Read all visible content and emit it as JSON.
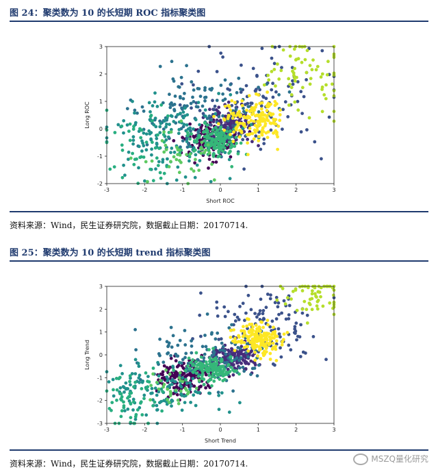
{
  "figure24": {
    "title": "图 24：聚类数为 10 的长短期 ROC 指标聚类图",
    "source": "资料来源：Wind，民生证券研究院，数据截止日期：20170714."
  },
  "figure25": {
    "title": "图 25：聚类数为 10 的长短期 trend 指标聚类图",
    "source": "资料来源：Wind，民生证券研究院，数据截止日期：20170714."
  },
  "watermark": "MSZQ量化研究",
  "colors": {
    "rule": "#1f3a6e",
    "clusters": [
      "#472d7b",
      "#3b528b",
      "#2c728e",
      "#21918c",
      "#28ae80",
      "#5ec962",
      "#35b779",
      "#fde725",
      "#dde318",
      "#440154"
    ]
  },
  "chart_data": [
    {
      "type": "scatter",
      "title": "",
      "xlabel": "Short ROC",
      "ylabel": "Long ROC",
      "xlim": [
        -3,
        3
      ],
      "ylim": [
        -2,
        3
      ],
      "xticks": [
        "-3",
        "-2",
        "-1",
        "0",
        "1",
        "2",
        "3"
      ],
      "yticks": [
        "-2",
        "-1",
        "0",
        "1",
        "2",
        "3"
      ],
      "clusters": [
        {
          "color": "#440154",
          "center": [
            -0.3,
            -0.4
          ],
          "spread": [
            0.35,
            0.35
          ],
          "n": 170
        },
        {
          "color": "#472d7b",
          "center": [
            0.25,
            0.15
          ],
          "spread": [
            0.3,
            0.3
          ],
          "n": 150
        },
        {
          "color": "#3b528b",
          "center": [
            0.9,
            1.1
          ],
          "spread": [
            0.9,
            0.9
          ],
          "n": 120
        },
        {
          "color": "#2c728e",
          "center": [
            -0.5,
            0.7
          ],
          "spread": [
            0.9,
            0.7
          ],
          "n": 140
        },
        {
          "color": "#21918c",
          "center": [
            -1.3,
            -0.3
          ],
          "spread": [
            0.9,
            0.7
          ],
          "n": 140
        },
        {
          "color": "#35b779",
          "center": [
            -0.1,
            -0.5
          ],
          "spread": [
            0.3,
            0.3
          ],
          "n": 150
        },
        {
          "color": "#28ae80",
          "center": [
            -2.0,
            -0.6
          ],
          "spread": [
            0.6,
            0.8
          ],
          "n": 50
        },
        {
          "color": "#fde725",
          "center": [
            0.9,
            0.3
          ],
          "spread": [
            0.4,
            0.4
          ],
          "n": 170
        },
        {
          "color": "#b5de2b",
          "center": [
            2.3,
            2.0
          ],
          "spread": [
            0.6,
            0.7
          ],
          "n": 70
        },
        {
          "color": "#5ec962",
          "center": [
            -1.0,
            -0.9
          ],
          "spread": [
            0.5,
            0.5
          ],
          "n": 40
        }
      ]
    },
    {
      "type": "scatter",
      "title": "",
      "xlabel": "Short Trend",
      "ylabel": "Long Trend",
      "xlim": [
        -3,
        3
      ],
      "ylim": [
        -3,
        3
      ],
      "xticks": [
        "-3",
        "-2",
        "-1",
        "0",
        "1",
        "2",
        "3"
      ],
      "yticks": [
        "-3",
        "-2",
        "-1",
        "0",
        "1",
        "2",
        "3"
      ],
      "clusters": [
        {
          "color": "#440154",
          "center": [
            -0.9,
            -1.0
          ],
          "spread": [
            0.35,
            0.35
          ],
          "n": 170
        },
        {
          "color": "#472d7b",
          "center": [
            0.3,
            -0.1
          ],
          "spread": [
            0.3,
            0.3
          ],
          "n": 150
        },
        {
          "color": "#3b528b",
          "center": [
            1.3,
            1.4
          ],
          "spread": [
            0.7,
            0.8
          ],
          "n": 120
        },
        {
          "color": "#2c728e",
          "center": [
            -0.3,
            -0.2
          ],
          "spread": [
            0.8,
            0.7
          ],
          "n": 140
        },
        {
          "color": "#21918c",
          "center": [
            -1.6,
            -1.5
          ],
          "spread": [
            0.7,
            0.6
          ],
          "n": 120
        },
        {
          "color": "#35b779",
          "center": [
            -0.2,
            -0.6
          ],
          "spread": [
            0.3,
            0.3
          ],
          "n": 140
        },
        {
          "color": "#28ae80",
          "center": [
            -2.3,
            -2.0
          ],
          "spread": [
            0.5,
            0.6
          ],
          "n": 60
        },
        {
          "color": "#fde725",
          "center": [
            1.0,
            0.7
          ],
          "spread": [
            0.35,
            0.35
          ],
          "n": 170
        },
        {
          "color": "#b5de2b",
          "center": [
            2.5,
            2.6
          ],
          "spread": [
            0.4,
            0.4
          ],
          "n": 60
        },
        {
          "color": "#5ec962",
          "center": [
            -1.2,
            -1.3
          ],
          "spread": [
            0.4,
            0.4
          ],
          "n": 30
        }
      ]
    }
  ]
}
